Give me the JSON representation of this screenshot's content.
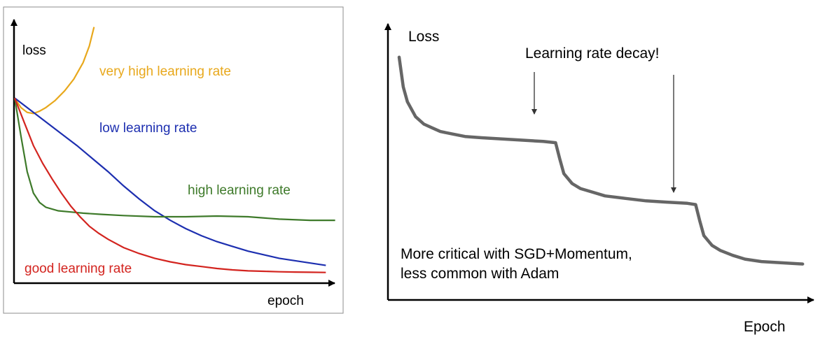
{
  "colors": {
    "very_high": "#e8a81c",
    "low": "#1d2fb0",
    "high": "#3e7a2a",
    "good": "#d3241f",
    "decay_curve": "#666666",
    "axis": "#000000",
    "frame": "#8c8c8c"
  },
  "chart_data": [
    {
      "type": "line",
      "title": "",
      "xlabel": "epoch",
      "ylabel": "loss",
      "xlim": [
        0,
        100
      ],
      "ylim": [
        0,
        100
      ],
      "grid": false,
      "legend": "none",
      "series": [
        {
          "name": "very high learning rate",
          "color_key": "very_high",
          "x": [
            0,
            2,
            4,
            6,
            8,
            10,
            13,
            16,
            19,
            22,
            24,
            25.5
          ],
          "y": [
            78,
            74,
            72,
            71.5,
            72.5,
            74,
            77,
            81,
            86,
            93,
            100,
            108
          ]
        },
        {
          "name": "low learning rate",
          "color_key": "low",
          "x": [
            0,
            5,
            10,
            15,
            20,
            25,
            30,
            35,
            40,
            45,
            50,
            55,
            60,
            65,
            70,
            75,
            80,
            85,
            90,
            95,
            100
          ],
          "y": [
            78,
            73,
            68,
            63,
            58,
            52.5,
            47,
            41,
            35.5,
            30.5,
            26.5,
            23,
            20,
            17.5,
            15.5,
            13.5,
            12,
            10.5,
            9.5,
            8.5,
            7.5
          ]
        },
        {
          "name": "high learning rate",
          "color_key": "high",
          "x": [
            0,
            2,
            4,
            6,
            8,
            10,
            14,
            18,
            22,
            28,
            35,
            45,
            55,
            65,
            75,
            85,
            95,
            103
          ],
          "y": [
            78,
            62,
            47,
            38,
            34,
            32,
            30.5,
            30,
            29.5,
            29,
            28.5,
            28,
            28,
            28.3,
            28,
            27,
            26.5,
            26.5
          ]
        },
        {
          "name": "good learning rate",
          "color_key": "good",
          "x": [
            0,
            3,
            6,
            9,
            12,
            15,
            18,
            21,
            24,
            27,
            30,
            35,
            40,
            45,
            50,
            55,
            60,
            65,
            70,
            75,
            80,
            85,
            90,
            95,
            100
          ],
          "y": [
            78,
            68,
            58,
            50.5,
            44,
            38,
            32.5,
            28,
            24,
            21,
            18.5,
            15,
            12.5,
            10.5,
            9,
            7.8,
            7,
            6.2,
            5.6,
            5.2,
            5,
            4.8,
            4.7,
            4.6,
            4.5
          ]
        }
      ]
    },
    {
      "type": "line",
      "title": "",
      "xlabel": "Epoch",
      "ylabel": "Loss",
      "xlim": [
        0,
        100
      ],
      "ylim": [
        0,
        100
      ],
      "grid": false,
      "legend": "none",
      "series": [
        {
          "name": "",
          "color_key": "decay_curve",
          "x": [
            0,
            1,
            2,
            4,
            6,
            8,
            10,
            13,
            16,
            20,
            25,
            30,
            35,
            38,
            39,
            40,
            42,
            44,
            47,
            50,
            55,
            60,
            65,
            70,
            72,
            73,
            74,
            76,
            78,
            81,
            84,
            88,
            93,
            98
          ],
          "y": [
            98,
            86,
            80,
            74,
            71,
            69.5,
            68,
            67,
            66,
            65.5,
            65,
            64.5,
            64,
            63.5,
            57,
            51,
            47,
            45,
            43.5,
            42,
            41,
            40,
            39.5,
            39,
            38.5,
            32,
            26,
            22,
            20,
            18,
            16.5,
            15.5,
            15,
            14.5
          ]
        }
      ],
      "annotations": [
        {
          "text": "Learning rate decay!",
          "arrows_at_x": [
            38,
            72
          ]
        },
        {
          "text": "More critical with SGD+Momentum,\nless common with Adam"
        }
      ]
    }
  ]
}
